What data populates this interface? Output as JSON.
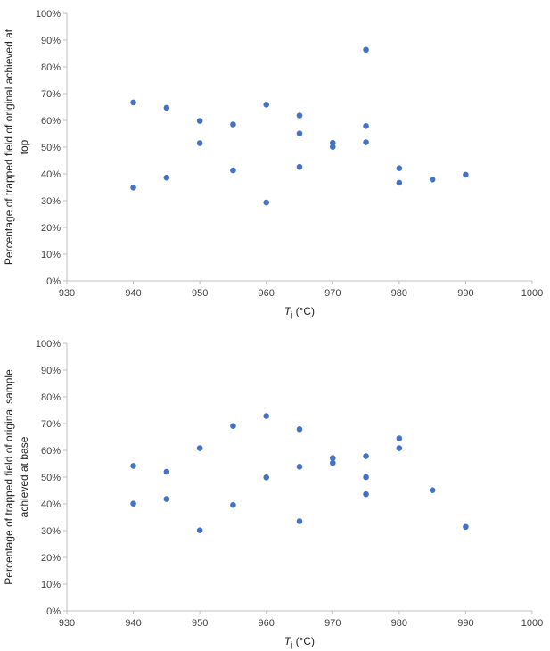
{
  "chart_data": [
    {
      "type": "scatter",
      "title": "",
      "ylabel_lines": [
        "Percentage of trapped field of original achieved at",
        "top"
      ],
      "xlabel_main": "T",
      "xlabel_sub": "j",
      "xlabel_unit": " (°C)",
      "xlim": [
        930,
        1000
      ],
      "ylim": [
        0,
        100
      ],
      "x_ticks": [
        930,
        940,
        950,
        960,
        970,
        980,
        990,
        1000
      ],
      "y_ticks": [
        0,
        10,
        20,
        30,
        40,
        50,
        60,
        70,
        80,
        90,
        100
      ],
      "y_tick_labels": [
        "0%",
        "10%",
        "20%",
        "30%",
        "40%",
        "50%",
        "60%",
        "70%",
        "80%",
        "90%",
        "100%"
      ],
      "marker_color": "#4472c4",
      "points": [
        {
          "x": 940,
          "y": 66.7
        },
        {
          "x": 940,
          "y": 34.9
        },
        {
          "x": 945,
          "y": 64.7
        },
        {
          "x": 945,
          "y": 38.6
        },
        {
          "x": 950,
          "y": 59.8
        },
        {
          "x": 950,
          "y": 51.5
        },
        {
          "x": 955,
          "y": 58.5
        },
        {
          "x": 955,
          "y": 41.3
        },
        {
          "x": 960,
          "y": 65.9
        },
        {
          "x": 960,
          "y": 29.3
        },
        {
          "x": 965,
          "y": 61.8
        },
        {
          "x": 965,
          "y": 55.1
        },
        {
          "x": 965,
          "y": 42.6
        },
        {
          "x": 970,
          "y": 51.6
        },
        {
          "x": 970,
          "y": 50.1
        },
        {
          "x": 975,
          "y": 86.4
        },
        {
          "x": 975,
          "y": 57.9
        },
        {
          "x": 975,
          "y": 51.8
        },
        {
          "x": 980,
          "y": 42.1
        },
        {
          "x": 980,
          "y": 36.7
        },
        {
          "x": 985,
          "y": 37.9
        },
        {
          "x": 990,
          "y": 39.7
        }
      ]
    },
    {
      "type": "scatter",
      "title": "",
      "ylabel_lines": [
        "Percentage of trapped field of original sample",
        "achieved at base"
      ],
      "xlabel_main": "T",
      "xlabel_sub": "j",
      "xlabel_unit": " (°C)",
      "xlim": [
        930,
        1000
      ],
      "ylim": [
        0,
        100
      ],
      "x_ticks": [
        930,
        940,
        950,
        960,
        970,
        980,
        990,
        1000
      ],
      "y_ticks": [
        0,
        10,
        20,
        30,
        40,
        50,
        60,
        70,
        80,
        90,
        100
      ],
      "y_tick_labels": [
        "0%",
        "10%",
        "20%",
        "30%",
        "40%",
        "50%",
        "60%",
        "70%",
        "80%",
        "90%",
        "100%"
      ],
      "marker_color": "#4472c4",
      "points": [
        {
          "x": 940,
          "y": 54.2
        },
        {
          "x": 940,
          "y": 40.1
        },
        {
          "x": 945,
          "y": 52.0
        },
        {
          "x": 945,
          "y": 41.8
        },
        {
          "x": 950,
          "y": 60.8
        },
        {
          "x": 950,
          "y": 30.1
        },
        {
          "x": 955,
          "y": 69.1
        },
        {
          "x": 955,
          "y": 39.6
        },
        {
          "x": 960,
          "y": 72.8
        },
        {
          "x": 960,
          "y": 49.9
        },
        {
          "x": 965,
          "y": 67.9
        },
        {
          "x": 965,
          "y": 53.9
        },
        {
          "x": 965,
          "y": 33.5
        },
        {
          "x": 970,
          "y": 57.1
        },
        {
          "x": 970,
          "y": 55.3
        },
        {
          "x": 975,
          "y": 57.8
        },
        {
          "x": 975,
          "y": 50.0
        },
        {
          "x": 975,
          "y": 43.6
        },
        {
          "x": 980,
          "y": 64.5
        },
        {
          "x": 980,
          "y": 60.8
        },
        {
          "x": 985,
          "y": 45.1
        },
        {
          "x": 990,
          "y": 31.4
        }
      ]
    }
  ]
}
